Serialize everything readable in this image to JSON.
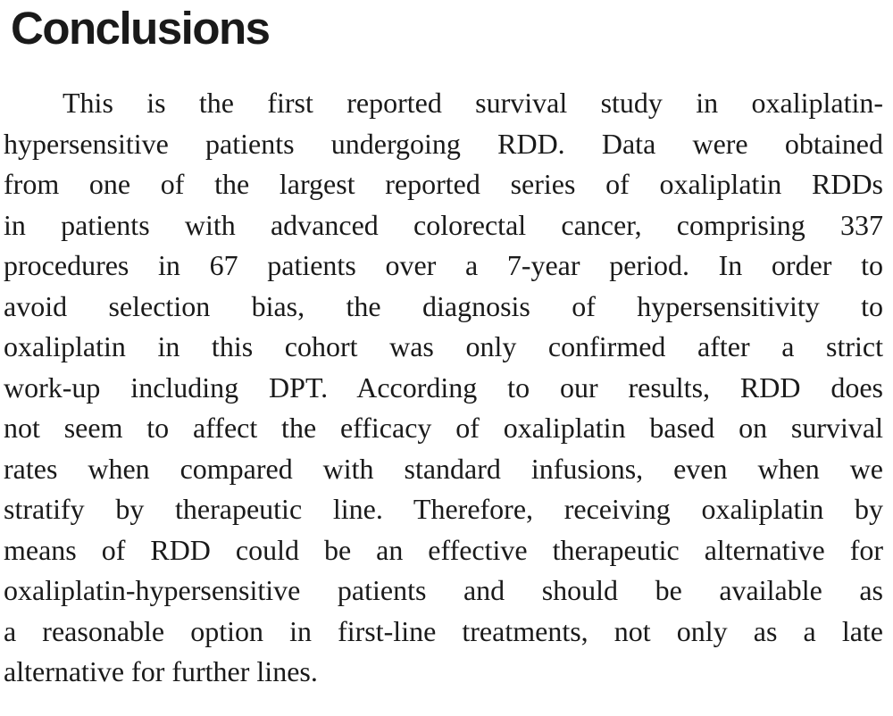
{
  "heading": "Conclusions",
  "paragraph": {
    "lines": [
      "This is the first reported survival study in oxaliplatin-",
      "hypersensitive patients undergoing RDD. Data were obtained",
      "from one of the largest reported series of oxaliplatin RDDs",
      "in patients with advanced colorectal cancer, comprising 337",
      "procedures in 67 patients over a 7-year period. In order to",
      "avoid selection bias, the diagnosis of hypersensitivity to",
      "oxaliplatin in this cohort was only confirmed after a strict",
      "work-up including DPT. According to our results, RDD does",
      "not seem to affect the efficacy of oxaliplatin based on survival",
      "rates when compared with standard infusions, even when we",
      "stratify by therapeutic line. Therefore, receiving oxaliplatin by",
      "means of RDD could be an effective therapeutic alternative for",
      "oxaliplatin-hypersensitive patients and should be available as",
      "a reasonable option in first-line treatments, not only as a late",
      "alternative for further lines."
    ]
  },
  "colors": {
    "text": "#1a1a1a",
    "background": "#ffffff"
  }
}
